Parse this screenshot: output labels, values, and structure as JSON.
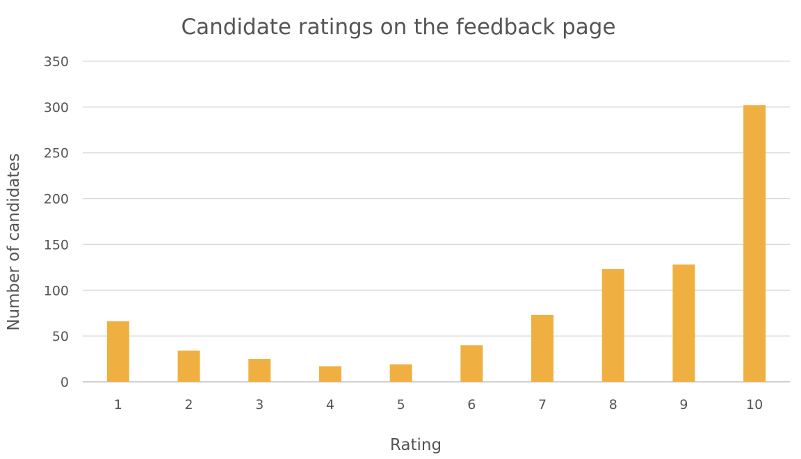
{
  "chart_data": {
    "type": "bar",
    "title": "Candidate ratings on the feedback page",
    "xlabel": "Rating",
    "ylabel": "Number of candidates",
    "categories": [
      "1",
      "2",
      "3",
      "4",
      "5",
      "6",
      "7",
      "8",
      "9",
      "10"
    ],
    "values": [
      66,
      34,
      25,
      17,
      19,
      40,
      73,
      123,
      128,
      302
    ],
    "yticks": [
      "0",
      "50",
      "100",
      "150",
      "200",
      "250",
      "300",
      "350"
    ],
    "ylim": [
      0,
      350
    ],
    "bar_color": "#F0B041",
    "grid": true,
    "legend": false
  }
}
